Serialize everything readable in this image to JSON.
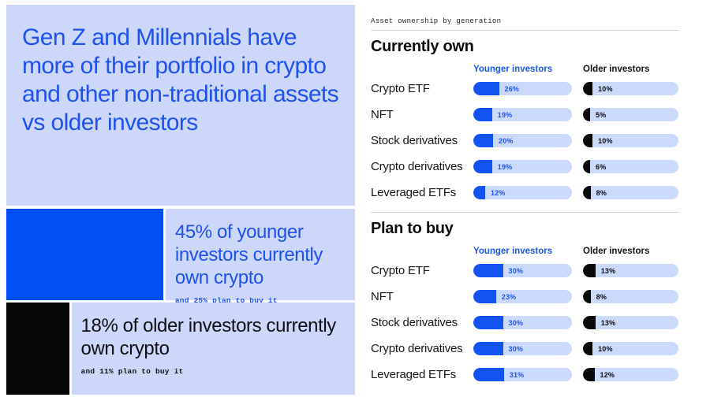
{
  "colors": {
    "panel_light": "#cdd7f9",
    "brand_blue_block": "#0050f5",
    "black_block": "#060608",
    "headline_blue": "#1e52f0",
    "bar_track": "#cbd9fb",
    "bar_fill_younger": "#1253f2",
    "bar_fill_older": "#0a0a0c",
    "divider": "#d8dbe3"
  },
  "left_panel": {
    "headline": "Gen Z and Millennials have more of their portfolio in crypto and other non-traditional assets vs older investors",
    "younger_callout": {
      "value": 45,
      "stat": "45% of younger investors currently own crypto",
      "note": "and 25% plan to buy it"
    },
    "older_callout": {
      "value": 18,
      "stat": "18% of older investors currently own crypto",
      "note": "and 11% plan to buy it"
    }
  },
  "dashboard": {
    "eyebrow": "Asset ownership by generation"
  },
  "chart_data": [
    {
      "type": "bar",
      "orientation": "horizontal",
      "title": "Currently own",
      "unit": "%",
      "xlim": [
        0,
        100
      ],
      "grid": false,
      "legend_position": "top",
      "categories": [
        "Crypto ETF",
        "NFT",
        "Stock derivatives",
        "Crypto derivatives",
        "Leveraged ETFs"
      ],
      "series": [
        {
          "name": "Younger investors",
          "color": "#1253f2",
          "values": [
            26,
            19,
            20,
            19,
            12
          ]
        },
        {
          "name": "Older investors",
          "color": "#0a0a0c",
          "values": [
            10,
            5,
            10,
            6,
            8
          ]
        }
      ]
    },
    {
      "type": "bar",
      "orientation": "horizontal",
      "title": "Plan to buy",
      "unit": "%",
      "xlim": [
        0,
        100
      ],
      "grid": false,
      "legend_position": "top",
      "categories": [
        "Crypto ETF",
        "NFT",
        "Stock derivatives",
        "Crypto derivatives",
        "Leveraged ETFs"
      ],
      "series": [
        {
          "name": "Younger investors",
          "color": "#1253f2",
          "values": [
            30,
            23,
            30,
            30,
            31
          ]
        },
        {
          "name": "Older investors",
          "color": "#0a0a0c",
          "values": [
            13,
            8,
            13,
            10,
            12
          ]
        }
      ]
    }
  ]
}
